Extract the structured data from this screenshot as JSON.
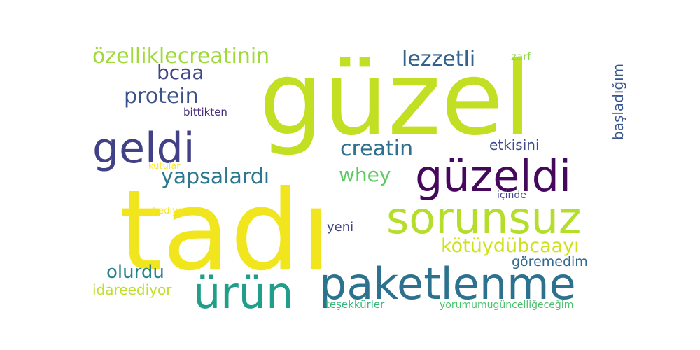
{
  "words": [
    {
      "text": "güzel",
      "color": "#c2df23"
    },
    {
      "text": "tadı",
      "color": "#f1e51d"
    },
    {
      "text": "paketlenme",
      "color": "#2c728e"
    },
    {
      "text": "güzeldi",
      "color": "#46085c"
    },
    {
      "text": "sorunsuz",
      "color": "#b5de2b"
    },
    {
      "text": "ürün",
      "color": "#1f9e89"
    },
    {
      "text": "geldi",
      "color": "#424086"
    },
    {
      "text": "özelliklecreatinin",
      "color": "#9fda3a"
    },
    {
      "text": "protein",
      "color": "#3b528b"
    },
    {
      "text": "yapsalardı",
      "color": "#2a788e"
    },
    {
      "text": "lezzetli",
      "color": "#33638d"
    },
    {
      "text": "creatin",
      "color": "#2d718e"
    },
    {
      "text": "kötüydübcaayı",
      "color": "#d0e11c"
    },
    {
      "text": "bcaa",
      "color": "#404688"
    },
    {
      "text": "whey",
      "color": "#5ec962"
    },
    {
      "text": "olurdu",
      "color": "#26828e"
    },
    {
      "text": "başladığım",
      "color": "#39568c"
    },
    {
      "text": "etkisini",
      "color": "#3e4989"
    },
    {
      "text": "göremedim",
      "color": "#31688e"
    },
    {
      "text": "idareediyor",
      "color": "#bddf26"
    },
    {
      "text": "yeni",
      "color": "#414487"
    },
    {
      "text": "bittikten",
      "color": "#472d7b"
    },
    {
      "text": "zarf",
      "color": "#8bd646"
    },
    {
      "text": "içinde",
      "color": "#3d4d8a"
    },
    {
      "text": "teşekkürler",
      "color": "#35b779"
    },
    {
      "text": "yorumumugüncelliğeceğim",
      "color": "#4ac16d"
    },
    {
      "text": "kutular",
      "color": "#fde725"
    },
    {
      "text": "hediye",
      "color": "#f8e621"
    }
  ]
}
